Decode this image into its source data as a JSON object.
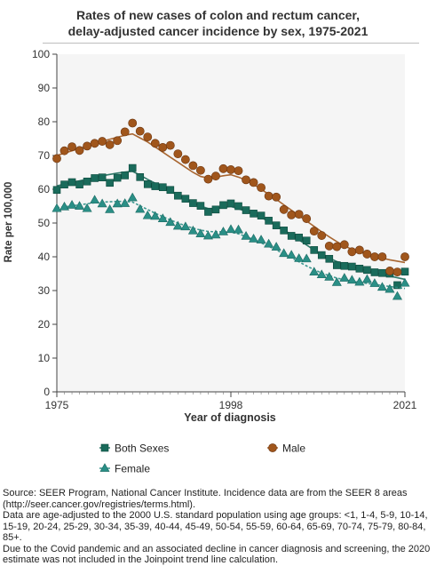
{
  "header": {
    "title_line1": "Rates of new cases of colon and rectum cancer,",
    "title_line2": "delay-adjusted cancer incidence by sex, 1975-2021"
  },
  "chart_data": {
    "type": "line",
    "xlabel": "Year of diagnosis",
    "ylabel": "Rate per 100,000",
    "xlim": [
      1975,
      2021
    ],
    "ylim": [
      0,
      100
    ],
    "x_ticks": [
      1975,
      1998,
      2021
    ],
    "y_ticks": [
      0,
      10,
      20,
      30,
      40,
      50,
      60,
      70,
      80,
      90,
      100
    ],
    "grid": false,
    "legend_position": "bottom",
    "x": [
      1975,
      1976,
      1977,
      1978,
      1979,
      1980,
      1981,
      1982,
      1983,
      1984,
      1985,
      1986,
      1987,
      1988,
      1989,
      1990,
      1991,
      1992,
      1993,
      1994,
      1995,
      1996,
      1997,
      1998,
      1999,
      2000,
      2001,
      2002,
      2003,
      2004,
      2005,
      2006,
      2007,
      2008,
      2009,
      2010,
      2011,
      2012,
      2013,
      2014,
      2015,
      2016,
      2017,
      2018,
      2019,
      2020,
      2021
    ],
    "series": [
      {
        "name": "Both Sexes",
        "marker": "square",
        "color": "#1a6b5b",
        "values": [
          59.8,
          61.4,
          62.1,
          61.4,
          62.3,
          63.3,
          63.5,
          61.9,
          63.4,
          64.1,
          66.3,
          63.6,
          61.5,
          60.9,
          60.6,
          59.8,
          58.1,
          57.2,
          55.9,
          55.1,
          53.3,
          54.0,
          55.3,
          55.8,
          55.0,
          53.8,
          52.8,
          52.2,
          50.7,
          49.3,
          47.8,
          46.2,
          45.7,
          44.8,
          42.0,
          40.5,
          39.4,
          37.5,
          37.3,
          37.1,
          36.5,
          36.1,
          35.4,
          35.2,
          35.0,
          31.6,
          35.6
        ],
        "trend": [
          61.0,
          61.5,
          62.0,
          62.5,
          63.0,
          63.5,
          64.0,
          64.4,
          64.8,
          65.1,
          65.3,
          64.2,
          62.9,
          61.8,
          60.6,
          59.4,
          58.2,
          57.1,
          56.0,
          55.0,
          54.3,
          54.3,
          54.6,
          54.9,
          54.2,
          53.5,
          52.6,
          51.6,
          50.5,
          49.3,
          48.0,
          46.5,
          45.0,
          43.5,
          42.0,
          40.7,
          39.6,
          38.6,
          37.8,
          37.1,
          36.5,
          35.9,
          35.3,
          34.8,
          34.3,
          33.8,
          33.3
        ]
      },
      {
        "name": "Male",
        "marker": "circle",
        "color": "#a0561c",
        "values": [
          69.1,
          71.4,
          72.6,
          71.5,
          72.8,
          73.6,
          74.2,
          73.2,
          74.4,
          77.0,
          79.6,
          77.2,
          75.5,
          73.6,
          72.4,
          73.0,
          70.5,
          68.8,
          67.0,
          65.6,
          63.0,
          63.9,
          66.1,
          65.8,
          65.5,
          62.8,
          62.0,
          60.5,
          58.0,
          57.7,
          54.0,
          52.4,
          52.6,
          51.3,
          47.6,
          46.3,
          43.2,
          43.0,
          43.6,
          41.5,
          42.0,
          40.8,
          40.0,
          40.0,
          35.8,
          35.5,
          40.0
        ],
        "trend": [
          70.0,
          70.7,
          71.4,
          72.1,
          72.8,
          73.5,
          74.2,
          74.8,
          75.4,
          76.0,
          76.4,
          75.2,
          74.0,
          72.5,
          71.0,
          69.5,
          68.0,
          66.5,
          65.0,
          63.8,
          63.3,
          63.6,
          64.0,
          64.3,
          63.6,
          62.7,
          61.5,
          60.0,
          58.5,
          57.0,
          55.4,
          53.8,
          52.2,
          50.6,
          49.0,
          47.4,
          45.9,
          44.5,
          43.2,
          42.2,
          41.4,
          40.7,
          40.1,
          39.6,
          39.1,
          38.7,
          38.3
        ]
      },
      {
        "name": "Female",
        "marker": "triangle",
        "color": "#2a8f86",
        "values": [
          54.3,
          54.8,
          55.3,
          55.0,
          54.3,
          56.8,
          55.7,
          54.0,
          55.7,
          55.8,
          57.5,
          54.1,
          52.2,
          52.0,
          51.3,
          50.2,
          49.1,
          48.9,
          47.7,
          46.8,
          46.2,
          46.5,
          47.4,
          48.1,
          48.0,
          46.1,
          45.3,
          45.0,
          43.8,
          42.9,
          41.0,
          40.5,
          39.5,
          39.4,
          35.5,
          34.7,
          34.0,
          32.4,
          33.7,
          33.1,
          32.5,
          33.3,
          32.1,
          31.0,
          30.4,
          28.3,
          32.2
        ],
        "trend": [
          54.5,
          54.8,
          55.1,
          55.4,
          55.7,
          56.0,
          56.2,
          56.3,
          56.4,
          56.4,
          56.2,
          55.1,
          54.0,
          52.9,
          51.9,
          50.9,
          50.0,
          49.2,
          48.5,
          47.9,
          47.5,
          47.4,
          47.4,
          47.3,
          46.8,
          46.0,
          45.1,
          44.1,
          43.1,
          42.0,
          40.9,
          39.7,
          38.5,
          37.3,
          36.2,
          35.2,
          34.4,
          33.7,
          33.2,
          32.8,
          32.4,
          32.1,
          31.8,
          31.5,
          31.2,
          30.9,
          30.6
        ]
      }
    ]
  },
  "footer": {
    "line1": "Source: SEER Program, National Cancer Institute. Incidence data are from the SEER 8 areas (http://seer.cancer.gov/registries/terms.html).",
    "line2": "Data are age-adjusted to the 2000 U.S. standard population using age groups: <1, 1-4, 5-9, 10-14, 15-19, 20-24, 25-29, 30-34, 35-39, 40-44, 45-49, 50-54, 55-59, 60-64, 65-69, 70-74, 75-79, 80-84, 85+.",
    "line3": "Due to the Covid pandemic and an associated decline in cancer diagnosis and screening, the 2020 estimate was not included in the Joinpoint trend line calculation."
  }
}
